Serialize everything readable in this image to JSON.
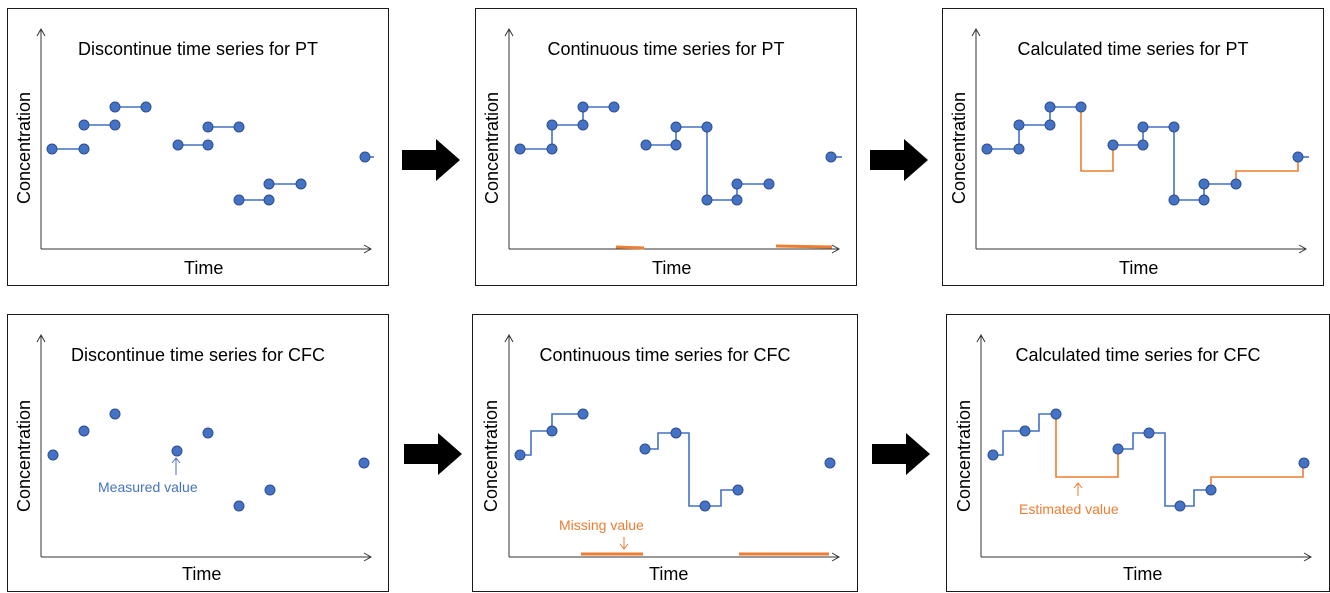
{
  "axis_labels": {
    "y": "Concentration",
    "x": "Time"
  },
  "colors": {
    "measured": "#4472c4",
    "marker_edge": "#2f4f8f",
    "estimated": "#ed7d31",
    "arrow": "#000000"
  },
  "panels": [
    {
      "id": "pt-discontinue",
      "title": "Discontinue time series for PT",
      "annotation": null
    },
    {
      "id": "pt-continuous",
      "title": "Continuous time series for PT",
      "annotation": null
    },
    {
      "id": "pt-calculated",
      "title": "Calculated time series for PT",
      "annotation": null
    },
    {
      "id": "cfc-discontinue",
      "title": "Discontinue time series for CFC",
      "annotation": "Measured value"
    },
    {
      "id": "cfc-continuous",
      "title": "Continuous time series for CFC",
      "annotation": "Missing value"
    },
    {
      "id": "cfc-calculated",
      "title": "Calculated time series for CFC",
      "annotation": "Estimated value"
    }
  ],
  "icons": {
    "flow_arrow": "right-arrow-icon"
  }
}
